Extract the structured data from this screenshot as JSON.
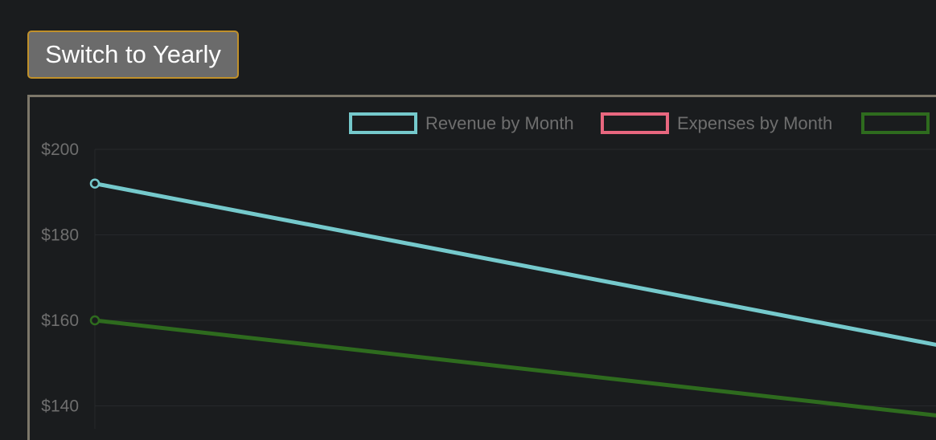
{
  "toolbar": {
    "toggle_label": "Switch to Yearly"
  },
  "colors": {
    "background": "#1a1c1e",
    "button_bg": "#6b6b6b",
    "button_border": "#c0902a",
    "panel_border": "#7d776a",
    "grid": "#26282b",
    "text": "#6e6e6e"
  },
  "chart_data": {
    "type": "line",
    "ylim": [
      130,
      200
    ],
    "yticks": [
      {
        "value": 200,
        "label": "$200"
      },
      {
        "value": 180,
        "label": "$180"
      },
      {
        "value": 160,
        "label": "$160"
      },
      {
        "value": 140,
        "label": "$140"
      }
    ],
    "legend_position": "top-right",
    "grid": true,
    "series": [
      {
        "name": "Revenue by Month",
        "color": "#75c9cc",
        "values": [
          192,
          153
        ],
        "show_line": true
      },
      {
        "name": "Expenses by Month",
        "color": "#e8677f",
        "values": [],
        "show_line": false
      },
      {
        "name": "",
        "color": "#2e6b1e",
        "values": [
          160,
          137
        ],
        "show_line": true
      }
    ]
  }
}
